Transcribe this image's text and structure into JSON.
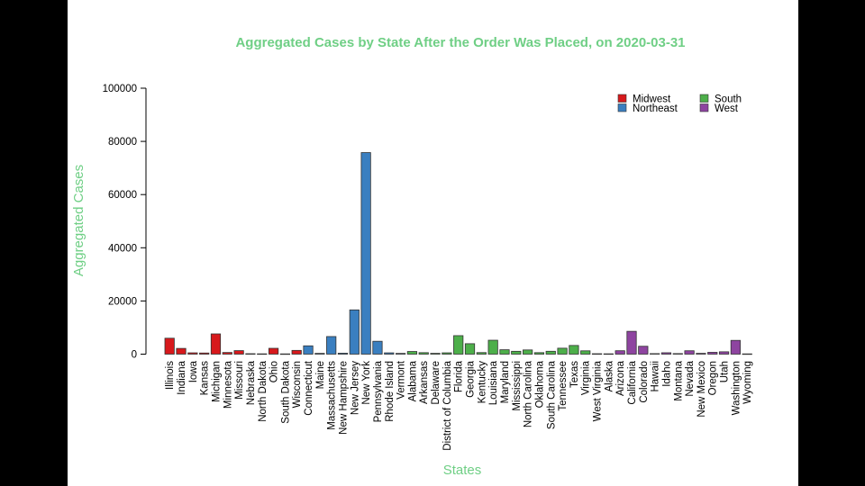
{
  "chart_data": {
    "type": "bar",
    "title": "Aggregated Cases by State After the Order Was Placed, on 2020-03-31",
    "xlabel": "States",
    "ylabel": "Aggregated Cases",
    "ylim": [
      0,
      100000
    ],
    "yticks": [
      0,
      20000,
      40000,
      60000,
      80000,
      100000
    ],
    "legend_position": "top-right",
    "colors": {
      "Midwest": "#d7191c",
      "Northeast": "#3a7fc0",
      "South": "#4daf4a",
      "West": "#8e44a0"
    },
    "legend": [
      "Midwest",
      "Northeast",
      "South",
      "West"
    ],
    "categories": [
      "Illinois",
      "Indiana",
      "Iowa",
      "Kansas",
      "Michigan",
      "Minnesota",
      "Missouri",
      "Nebraska",
      "North Dakota",
      "Ohio",
      "South Dakota",
      "Wisconsin",
      "Connecticut",
      "Maine",
      "Massachusetts",
      "New Hampshire",
      "New Jersey",
      "New York",
      "Pennsylvania",
      "Rhode Island",
      "Vermont",
      "Alabama",
      "Arkansas",
      "Delaware",
      "District of Columbia",
      "Florida",
      "Georgia",
      "Kentucky",
      "Louisiana",
      "Maryland",
      "Mississippi",
      "North Carolina",
      "Oklahoma",
      "South Carolina",
      "Tennessee",
      "Texas",
      "Virginia",
      "West Virginia",
      "Alaska",
      "Arizona",
      "California",
      "Colorado",
      "Hawaii",
      "Idaho",
      "Montana",
      "Nevada",
      "New Mexico",
      "Oregon",
      "Utah",
      "Washington",
      "Wyoming"
    ],
    "regions": [
      "Midwest",
      "Midwest",
      "Midwest",
      "Midwest",
      "Midwest",
      "Midwest",
      "Midwest",
      "Midwest",
      "Midwest",
      "Midwest",
      "Midwest",
      "Midwest",
      "Northeast",
      "Northeast",
      "Northeast",
      "Northeast",
      "Northeast",
      "Northeast",
      "Northeast",
      "Northeast",
      "Northeast",
      "South",
      "South",
      "South",
      "South",
      "South",
      "South",
      "South",
      "South",
      "South",
      "South",
      "South",
      "South",
      "South",
      "South",
      "South",
      "South",
      "South",
      "West",
      "West",
      "West",
      "West",
      "West",
      "West",
      "West",
      "West",
      "West",
      "West",
      "West",
      "West",
      "West"
    ],
    "values": [
      5994,
      2159,
      497,
      428,
      7615,
      629,
      1327,
      172,
      126,
      2199,
      108,
      1412,
      3128,
      303,
      6620,
      367,
      16636,
      75795,
      4843,
      488,
      293,
      999,
      560,
      319,
      495,
      6955,
      3929,
      591,
      5237,
      1660,
      1073,
      1584,
      565,
      1083,
      2239,
      3266,
      1250,
      162,
      132,
      1289,
      8582,
      2966,
      204,
      525,
      217,
      1279,
      315,
      690,
      887,
      5179,
      109
    ]
  }
}
